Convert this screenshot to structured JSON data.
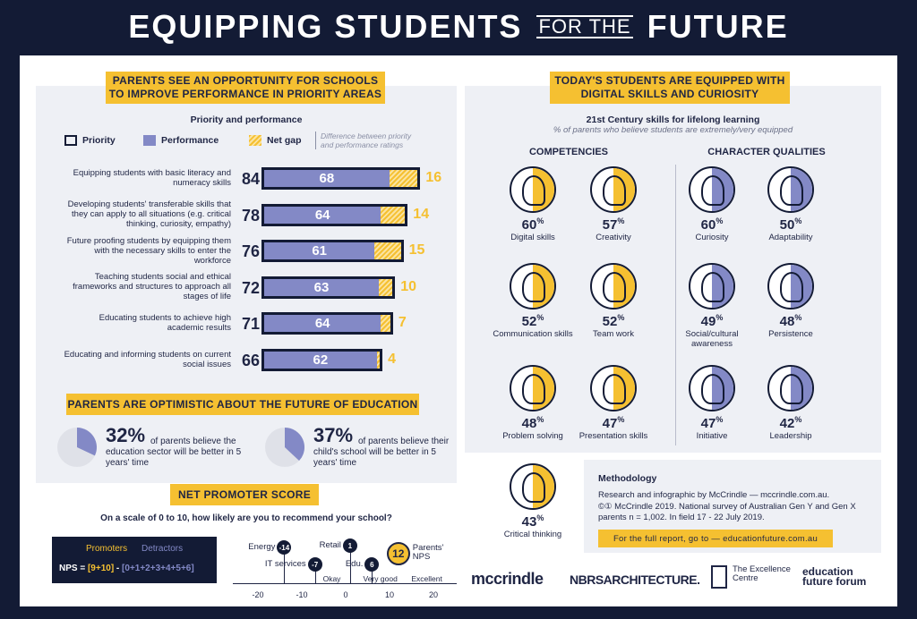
{
  "header": {
    "part1": "EQUIPPING STUDENTS",
    "part2": "FOR THE",
    "part3": "FUTURE"
  },
  "left": {
    "banner": "PARENTS SEE AN OPPORTUNITY FOR SCHOOLS TO IMPROVE PERFORMANCE IN PRIORITY AREAS",
    "subtitle": "Priority and performance",
    "legend": {
      "priority": "Priority",
      "performance": "Performance",
      "gap": "Net gap",
      "gap_note": "Difference between priority and performance ratings"
    },
    "rows": [
      {
        "label": "Equipping students with basic literacy and numeracy skills",
        "priority": "84",
        "performance": "68",
        "gap": "16",
        "p": 84,
        "f": 68
      },
      {
        "label": "Developing students' transferable skills that they can apply to all situations (e.g. critical thinking, curiosity, empathy)",
        "priority": "78",
        "performance": "64",
        "gap": "14",
        "p": 78,
        "f": 64
      },
      {
        "label": "Future proofing students by equipping them with the necessary skills to enter the workforce",
        "priority": "76",
        "performance": "61",
        "gap": "15",
        "p": 76,
        "f": 61
      },
      {
        "label": "Teaching students social and ethical frameworks and structures to approach all stages of life",
        "priority": "72",
        "performance": "63",
        "gap": "10",
        "p": 72,
        "f": 63
      },
      {
        "label": "Educating students to achieve high academic results",
        "priority": "71",
        "performance": "64",
        "gap": "7",
        "p": 71,
        "f": 64
      },
      {
        "label": "Educating and informing students on current social issues",
        "priority": "66",
        "performance": "62",
        "gap": "4",
        "p": 66,
        "f": 62
      }
    ],
    "opt_banner": "PARENTS ARE OPTIMISTIC ABOUT THE FUTURE OF EDUCATION",
    "opt1": {
      "pct": "32%",
      "value": 32,
      "text": "of parents believe the education sector will be better in 5 years' time"
    },
    "opt2": {
      "pct": "37%",
      "value": 37,
      "text": "of parents believe their child's school will be better in 5 years' time"
    },
    "nps_banner": "NET PROMOTER SCORE",
    "nps_question": "On a scale of 0 to 10, how likely are you to recommend your school?",
    "nps_box": {
      "promoters": "Promoters",
      "detractors": "Detractors",
      "formula_a": "NPS = ",
      "formula_b": "[9+10]",
      "formula_c": " - ",
      "formula_d": "[0+1+2+3+4+5+6]"
    },
    "nps_scale": {
      "ticks": [
        "-20",
        "-10",
        "0",
        "10",
        "20"
      ],
      "zones": [
        "Okay",
        "Very good",
        "Excellent"
      ],
      "points": [
        {
          "label": "Energy",
          "value": "-14"
        },
        {
          "label": "IT services",
          "value": "-7"
        },
        {
          "label": "Retail",
          "value": "1"
        },
        {
          "label": "Edu.",
          "value": "6"
        },
        {
          "label": "Parents' NPS",
          "value": "12"
        }
      ]
    }
  },
  "right": {
    "banner": "TODAY'S STUDENTS ARE EQUIPPED WITH DIGITAL SKILLS AND CURIOSITY",
    "subtitle": "21st Century skills for lifelong learning",
    "subnote": "% of parents who believe students are extremely/very equipped",
    "col1": "COMPETENCIES",
    "col2": "CHARACTER QUALITIES",
    "skills": [
      {
        "pct": "60",
        "label": "Digital skills",
        "color": "#f5c031"
      },
      {
        "pct": "57",
        "label": "Creativity",
        "color": "#f5c031"
      },
      {
        "pct": "60",
        "label": "Curiosity",
        "color": "#8389c6"
      },
      {
        "pct": "50",
        "label": "Adaptability",
        "color": "#8389c6"
      },
      {
        "pct": "52",
        "label": "Communication skills",
        "color": "#f5c031"
      },
      {
        "pct": "52",
        "label": "Team work",
        "color": "#f5c031"
      },
      {
        "pct": "49",
        "label": "Social/cultural awareness",
        "color": "#8389c6"
      },
      {
        "pct": "48",
        "label": "Persistence",
        "color": "#8389c6"
      },
      {
        "pct": "48",
        "label": "Problem solving",
        "color": "#f5c031"
      },
      {
        "pct": "47",
        "label": "Presentation skills",
        "color": "#f5c031"
      },
      {
        "pct": "47",
        "label": "Initiative",
        "color": "#8389c6"
      },
      {
        "pct": "42",
        "label": "Leadership",
        "color": "#8389c6"
      },
      {
        "pct": "43",
        "label": "Critical thinking",
        "color": "#f5c031"
      }
    ],
    "method": {
      "title": "Methodology",
      "line1": "Research and infographic by McCrindle — mccrindle.com.au.",
      "line2": "©① McCrindle 2019. National survey of Australian Gen Y and Gen X parents n = 1,002. In field 17 - 22 July 2019.",
      "cta": "For the full report, go to — educationfuture.com.au"
    },
    "logos": [
      "mccrindle",
      "NBRSARCHITECTURE.",
      "The Excellence Centre",
      "education future forum"
    ]
  }
}
